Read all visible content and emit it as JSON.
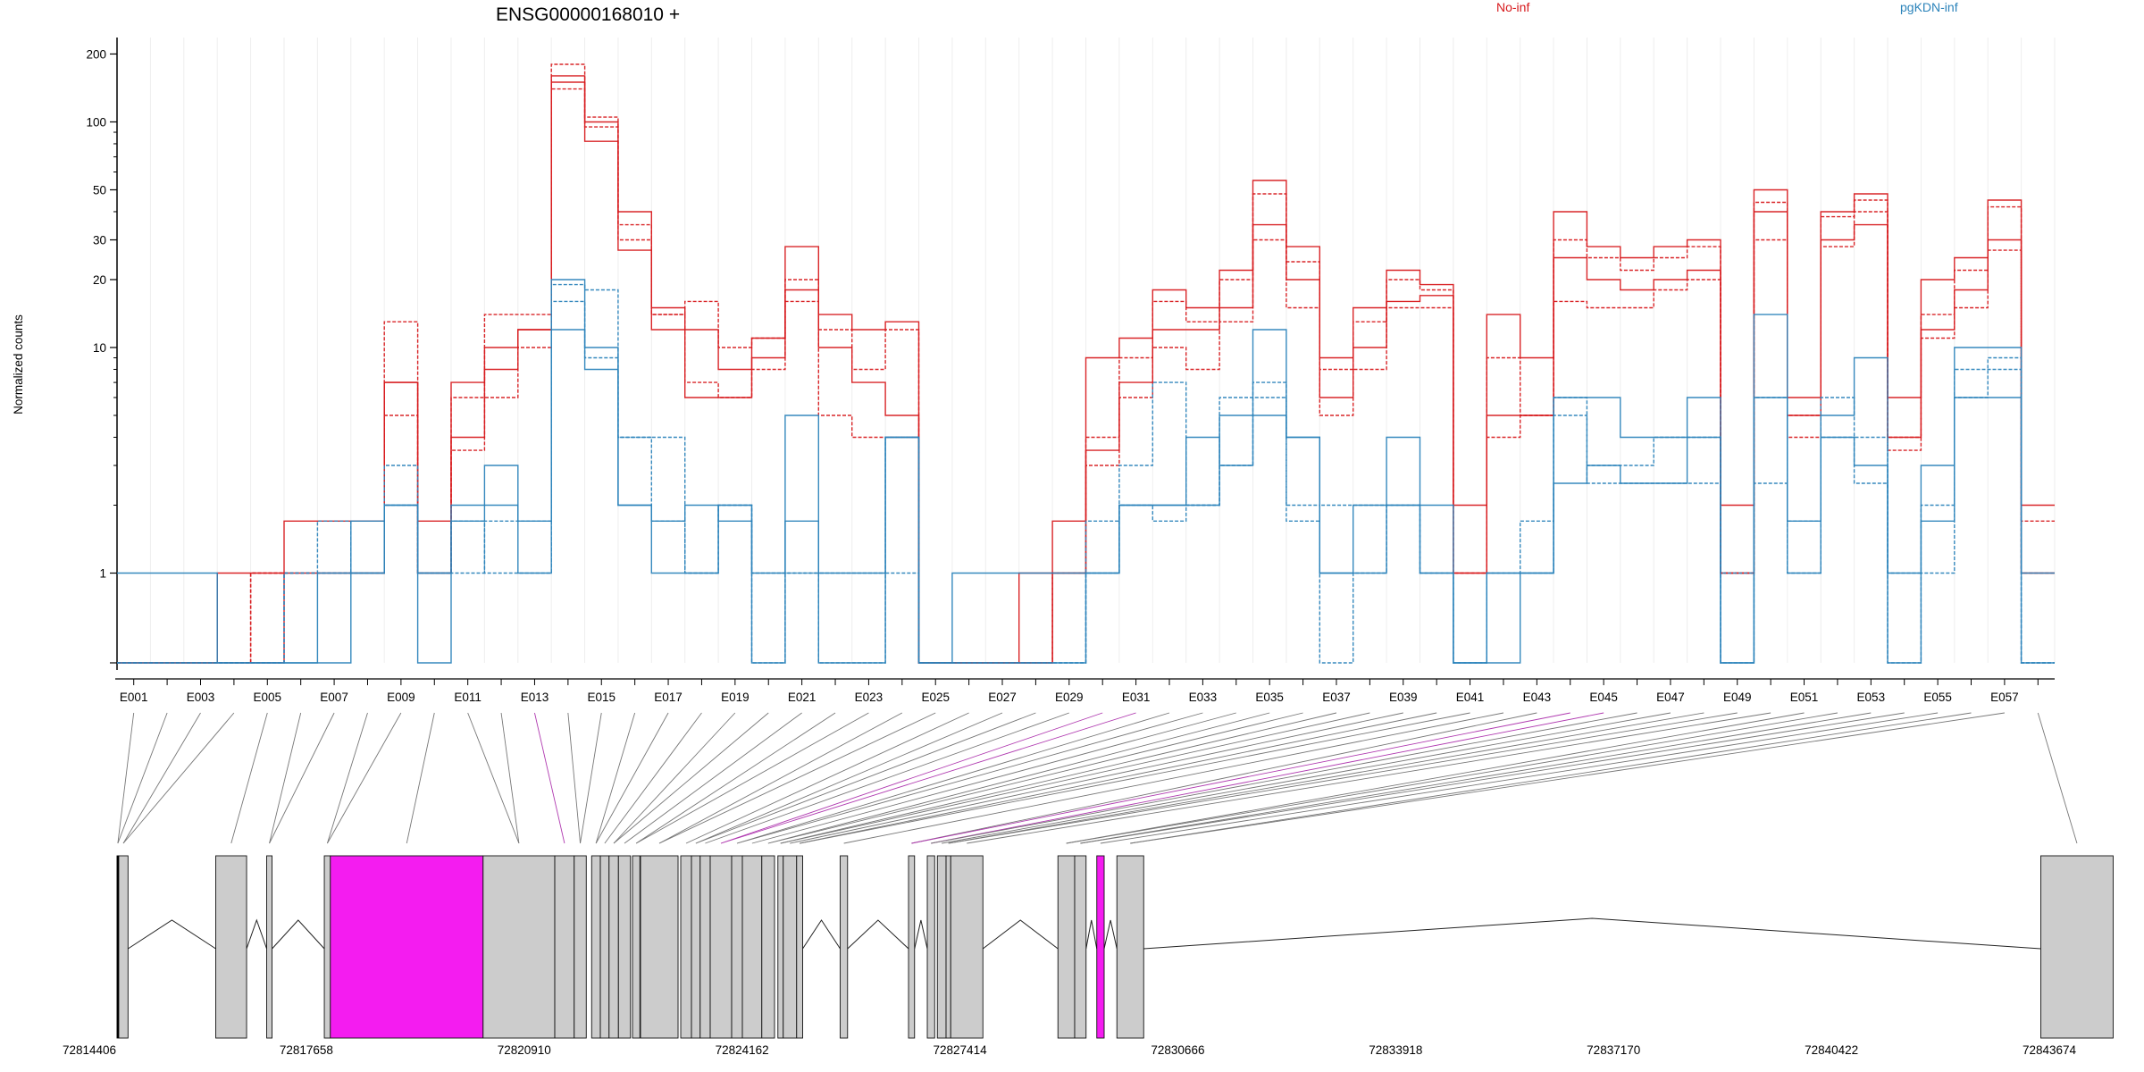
{
  "chart_data": {
    "type": "line",
    "title": "ENSG00000168010 +",
    "ylabel": "Normalized counts",
    "yscale": "log",
    "ylim": [
      0.4,
      220
    ],
    "yticks": [
      1,
      10,
      20,
      30,
      50,
      100,
      200
    ],
    "exon_labels": [
      "E001",
      "E003",
      "E005",
      "E007",
      "E009",
      "E011",
      "E013",
      "E015",
      "E017",
      "E019",
      "E021",
      "E023",
      "E025",
      "E027",
      "E029",
      "E031",
      "E033",
      "E035",
      "E037",
      "E039",
      "E041",
      "E043",
      "E045",
      "E047",
      "E049",
      "E051",
      "E053",
      "E055",
      "E057"
    ],
    "n_bins": 58,
    "groups": [
      {
        "name": "No-inf",
        "color": "#d7191c",
        "series": [
          [
            0.4,
            0.4,
            0.4,
            1.0,
            1.0,
            1.0,
            1.0,
            1.0,
            7.0,
            1.0,
            4.0,
            8.0,
            12.0,
            160,
            100,
            40,
            15,
            12,
            8,
            11,
            28,
            14,
            12,
            13,
            0.4,
            0.4,
            0.4,
            1.0,
            1.7,
            9.0,
            11,
            18,
            15,
            22,
            55,
            28,
            9.0,
            15,
            22,
            19,
            2.0,
            14,
            9.0,
            40,
            28,
            25,
            28,
            30,
            2.0,
            50,
            6.0,
            40,
            48,
            6.0,
            20,
            25,
            45,
            2.0
          ],
          [
            0.4,
            0.4,
            0.4,
            0.4,
            1.0,
            1.0,
            1.0,
            1.0,
            13.0,
            1.0,
            6.0,
            14.0,
            14.0,
            180,
            105,
            30,
            14,
            16,
            10,
            11,
            20,
            12,
            8,
            12,
            0.4,
            0.4,
            0.4,
            0.4,
            1.0,
            4.0,
            9.0,
            16,
            13,
            20,
            48,
            24,
            8.0,
            13,
            20,
            18,
            1.0,
            9.0,
            5.0,
            30,
            25,
            22,
            25,
            28,
            1.0,
            44,
            5.0,
            38,
            45,
            4.0,
            14,
            22,
            42,
            1.7
          ],
          [
            0.4,
            0.4,
            0.4,
            0.4,
            0.4,
            1.7,
            1.7,
            1.7,
            7.0,
            1.7,
            7.0,
            10.0,
            12.0,
            150,
            82,
            27,
            12,
            6.0,
            6.0,
            9.0,
            18,
            10,
            7,
            5.0,
            0.4,
            0.4,
            0.4,
            0.4,
            1.0,
            3.5,
            7.0,
            12,
            12,
            15,
            35,
            20,
            6.0,
            10,
            16,
            17,
            1.0,
            5.0,
            5.0,
            25,
            20,
            18,
            20,
            22,
            1.0,
            40,
            5.0,
            30,
            35,
            4.0,
            12,
            18,
            30,
            1.0
          ],
          [
            0.4,
            0.4,
            0.4,
            0.4,
            1.0,
            1.0,
            1.0,
            1.0,
            5.0,
            1.0,
            3.5,
            6.0,
            10.0,
            140,
            95,
            35,
            14,
            7.0,
            6.0,
            8.0,
            16,
            5.0,
            4.0,
            4.0,
            0.4,
            0.4,
            0.4,
            0.4,
            1.0,
            3.0,
            6.0,
            10,
            8.0,
            13,
            30,
            15,
            5.0,
            8.0,
            15,
            15,
            1.0,
            4.0,
            5.0,
            16,
            15,
            15,
            18,
            20,
            1.0,
            30,
            4.0,
            28,
            40,
            3.5,
            11,
            15,
            27,
            1.0
          ]
        ]
      },
      {
        "name": "pgKDN-inf",
        "color": "#2b83ba",
        "series": [
          [
            1.0,
            1.0,
            1.0,
            0.4,
            0.4,
            0.4,
            0.4,
            1.0,
            2.0,
            1.0,
            1.7,
            2.0,
            1.0,
            20,
            10,
            2.0,
            1.7,
            2.0,
            1.7,
            1.0,
            1.7,
            1.0,
            1.0,
            4.0,
            0.4,
            1.0,
            1.0,
            1.0,
            1.0,
            1.0,
            2.0,
            2.0,
            2.0,
            5.0,
            12,
            4.0,
            1.0,
            2.0,
            2.0,
            2.0,
            0.4,
            1.0,
            1.0,
            6.0,
            6.0,
            4.0,
            4.0,
            6.0,
            0.4,
            14,
            1.7,
            5.0,
            9.0,
            1.0,
            3.0,
            10,
            10,
            1.0
          ],
          [
            0.4,
            0.4,
            0.4,
            0.4,
            0.4,
            1.0,
            1.0,
            1.0,
            3.0,
            1.0,
            1.0,
            1.7,
            1.7,
            16,
            9,
            4.0,
            1.7,
            1.0,
            2.0,
            0.4,
            1.0,
            0.4,
            0.4,
            1.0,
            0.4,
            0.4,
            0.4,
            0.4,
            0.4,
            1.7,
            3.0,
            7.0,
            2.0,
            6.0,
            7.0,
            1.7,
            2.0,
            2.0,
            2.0,
            1.0,
            0.4,
            1.0,
            1.7,
            6.0,
            3.0,
            3.0,
            4.0,
            4.0,
            1.0,
            6.0,
            1.7,
            6.0,
            4.0,
            1.0,
            2.0,
            8.0,
            8.0,
            0.4
          ],
          [
            0.4,
            0.4,
            0.4,
            0.4,
            0.4,
            0.4,
            1.0,
            1.7,
            2.0,
            0.4,
            2.0,
            3.0,
            1.7,
            12,
            8,
            2.0,
            1.0,
            1.0,
            2.0,
            0.4,
            5.0,
            0.4,
            0.4,
            4.0,
            0.4,
            0.4,
            0.4,
            0.4,
            0.4,
            1.0,
            2.0,
            2.0,
            4.0,
            3.0,
            5.0,
            4.0,
            1.0,
            1.0,
            4.0,
            1.0,
            0.4,
            0.4,
            1.0,
            2.5,
            3.0,
            2.5,
            2.5,
            4.0,
            0.4,
            6.0,
            1.0,
            4.0,
            3.0,
            0.4,
            1.7,
            6.0,
            6.0,
            0.4
          ],
          [
            0.4,
            0.4,
            0.4,
            0.4,
            0.4,
            1.0,
            1.7,
            1.0,
            2.0,
            1.0,
            1.7,
            1.0,
            1.0,
            19,
            18,
            4.0,
            4.0,
            1.0,
            2.0,
            1.0,
            1.0,
            1.0,
            1.0,
            4.0,
            0.4,
            0.4,
            0.4,
            0.4,
            0.4,
            1.0,
            2.0,
            1.7,
            2.0,
            3.0,
            6.0,
            2.0,
            0.4,
            1.0,
            2.0,
            1.0,
            0.4,
            1.0,
            1.0,
            5.0,
            2.5,
            2.5,
            2.5,
            2.5,
            0.4,
            2.5,
            1.0,
            4.0,
            2.5,
            0.4,
            1.0,
            6.0,
            9.0,
            0.4
          ]
        ]
      }
    ],
    "gene_model": {
      "coord_ticks": [
        "72814406",
        "72817658",
        "72820910",
        "72824162",
        "72827414",
        "72830666",
        "72833918",
        "72837170",
        "72840422",
        "72843674"
      ],
      "coord_start": 72814406,
      "coord_end": 72843674,
      "highlight_color": "#f41cf0",
      "exon_fill": "#cccccc",
      "exons": [
        [
          72814406,
          72814430,
          false
        ],
        [
          72814430,
          72814570,
          false
        ],
        [
          72815880,
          72816340,
          false
        ],
        [
          72816640,
          72816720,
          false
        ],
        [
          72817500,
          72817590,
          false
        ],
        [
          72817590,
          72819870,
          true
        ],
        [
          72819870,
          72820940,
          false
        ],
        [
          72820940,
          72821230,
          false
        ],
        [
          72821230,
          72821410,
          false
        ],
        [
          72821490,
          72821620,
          false
        ],
        [
          72821620,
          72821750,
          false
        ],
        [
          72821750,
          72821890,
          false
        ],
        [
          72821890,
          72822070,
          false
        ],
        [
          72822100,
          72822210,
          false
        ],
        [
          72822220,
          72822780,
          false
        ],
        [
          72822820,
          72822980,
          false
        ],
        [
          72822980,
          72823110,
          false
        ],
        [
          72823110,
          72823260,
          false
        ],
        [
          72823260,
          72823580,
          false
        ],
        [
          72823580,
          72823740,
          false
        ],
        [
          72823740,
          72824030,
          false
        ],
        [
          72824030,
          72824220,
          false
        ],
        [
          72824270,
          72824350,
          false
        ],
        [
          72824350,
          72824550,
          false
        ],
        [
          72824550,
          72824640,
          false
        ],
        [
          72825200,
          72825310,
          false
        ],
        [
          72826220,
          72826310,
          false
        ],
        [
          72826500,
          72826610,
          false
        ],
        [
          72826650,
          72826780,
          false
        ],
        [
          72826780,
          72826850,
          false
        ],
        [
          72826850,
          72827330,
          false
        ],
        [
          72828450,
          72828700,
          false
        ],
        [
          72828700,
          72828870,
          false
        ],
        [
          72829030,
          72829140,
          true
        ],
        [
          72829330,
          72829730,
          false
        ],
        [
          72843120,
          72844200,
          false
        ]
      ]
    }
  }
}
